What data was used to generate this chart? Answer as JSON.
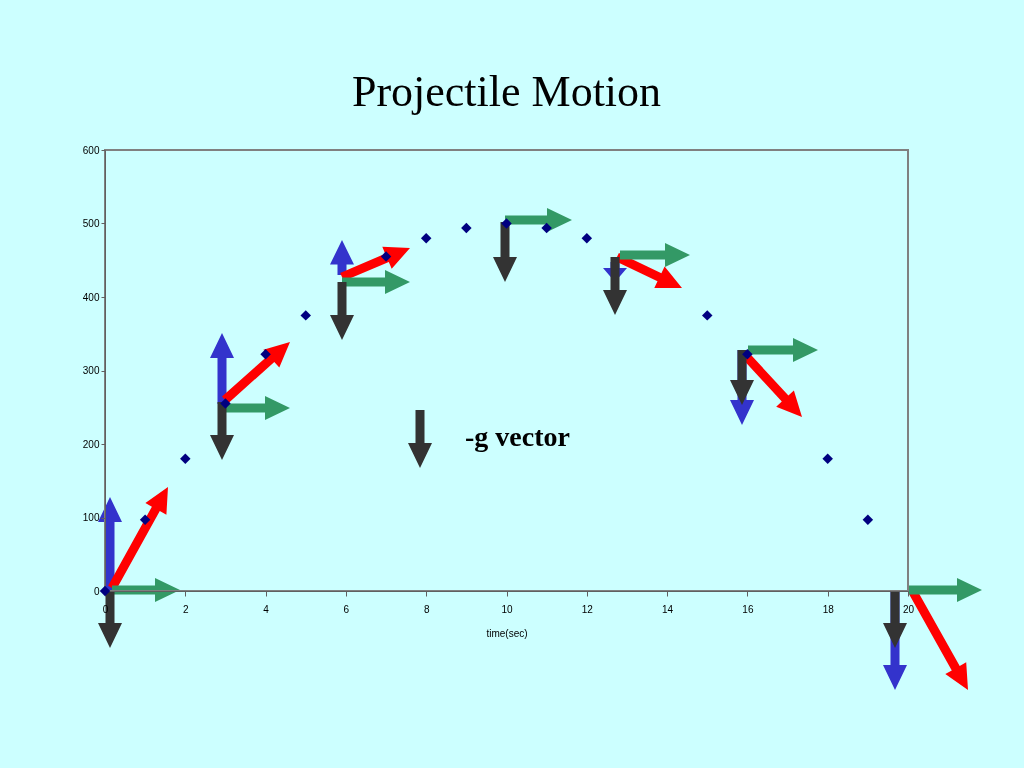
{
  "chart_data": {
    "type": "scatter",
    "title": "Projectile Motion",
    "xlabel": "time(sec)",
    "x": [
      0,
      1,
      2,
      3,
      4,
      5,
      6,
      7,
      8,
      9,
      10,
      11,
      12,
      13,
      14,
      15,
      16,
      17,
      18,
      19
    ],
    "values": [
      0,
      97,
      180,
      255,
      322,
      375,
      null,
      455,
      480,
      494,
      500,
      494,
      480,
      null,
      null,
      375,
      322,
      null,
      180,
      97
    ],
    "color": "#000080",
    "marker": "diamond",
    "grid": false,
    "xlim": [
      0,
      20
    ],
    "xticks": [
      0,
      2,
      4,
      6,
      8,
      10,
      12,
      14,
      16,
      18,
      20
    ],
    "ylim": [
      0,
      600
    ],
    "yticks": [
      0,
      100,
      200,
      300,
      400,
      500,
      600
    ],
    "annotations": [
      "-g vector"
    ]
  }
}
